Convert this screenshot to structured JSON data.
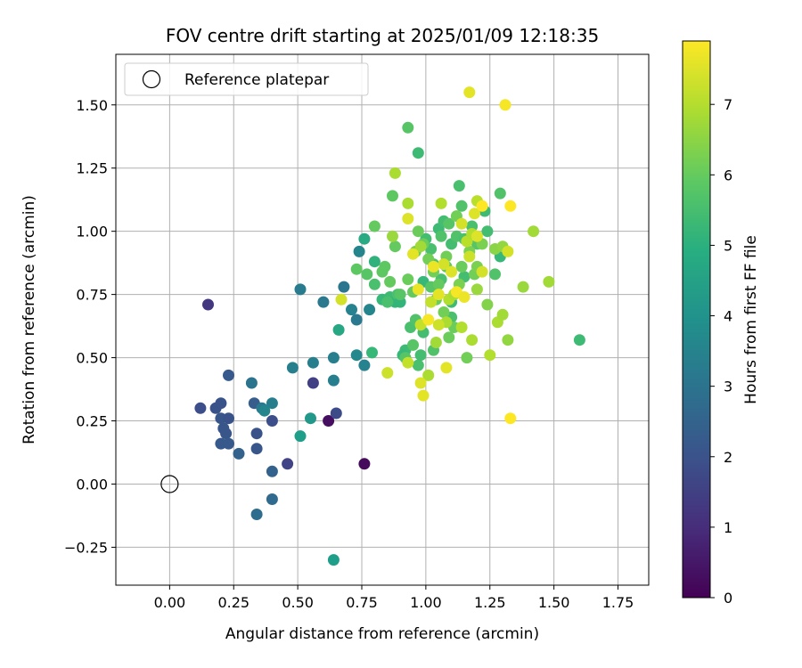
{
  "chart_data": {
    "type": "scatter",
    "title": "FOV centre drift starting at 2025/01/09 12:18:35",
    "xlabel": "Angular distance from reference (arcmin)",
    "ylabel": "Rotation from reference (arcmin)",
    "xlim": [
      -0.21,
      1.87
    ],
    "ylim": [
      -0.4,
      1.7
    ],
    "xticks": [
      0.0,
      0.25,
      0.5,
      0.75,
      1.0,
      1.25,
      1.5,
      1.75
    ],
    "xtick_labels": [
      "0.00",
      "0.25",
      "0.50",
      "0.75",
      "1.00",
      "1.25",
      "1.50",
      "1.75"
    ],
    "yticks": [
      -0.25,
      0.0,
      0.25,
      0.5,
      0.75,
      1.0,
      1.25,
      1.5
    ],
    "ytick_labels": [
      "−0.25",
      "0.00",
      "0.25",
      "0.50",
      "0.75",
      "1.00",
      "1.25",
      "1.50"
    ],
    "grid": true,
    "legend": {
      "placement": "top-left",
      "entries": [
        "Reference platepar"
      ]
    },
    "reference_point": {
      "x": 0.0,
      "y": 0.0,
      "marker": "open-circle"
    },
    "colorbar": {
      "label": "Hours from first FF file",
      "colormap": "viridis",
      "range": [
        0,
        7.9
      ],
      "ticks": [
        0,
        1,
        2,
        3,
        4,
        5,
        6,
        7
      ],
      "tick_labels": [
        "0",
        "1",
        "2",
        "3",
        "4",
        "5",
        "6",
        "7"
      ]
    },
    "points": [
      [
        0.76,
        0.08,
        0.2
      ],
      [
        0.62,
        0.25,
        0.3
      ],
      [
        0.15,
        0.71,
        1.3
      ],
      [
        0.56,
        0.4,
        1.5
      ],
      [
        0.46,
        0.08,
        1.6
      ],
      [
        0.65,
        0.28,
        1.8
      ],
      [
        0.12,
        0.3,
        1.9
      ],
      [
        0.18,
        0.3,
        2.0
      ],
      [
        0.2,
        0.32,
        2.0
      ],
      [
        0.2,
        0.26,
        2.1
      ],
      [
        0.23,
        0.26,
        2.0
      ],
      [
        0.21,
        0.22,
        2.1
      ],
      [
        0.22,
        0.2,
        2.1
      ],
      [
        0.2,
        0.16,
        2.2
      ],
      [
        0.23,
        0.16,
        2.2
      ],
      [
        0.23,
        0.43,
        2.2
      ],
      [
        0.34,
        0.2,
        2.0
      ],
      [
        0.34,
        0.14,
        2.1
      ],
      [
        0.33,
        0.32,
        2.3
      ],
      [
        0.4,
        0.25,
        1.9
      ],
      [
        0.27,
        0.12,
        2.5
      ],
      [
        0.4,
        0.05,
        2.5
      ],
      [
        0.4,
        -0.06,
        2.7
      ],
      [
        0.34,
        -0.12,
        2.8
      ],
      [
        0.32,
        0.4,
        3.0
      ],
      [
        0.36,
        0.3,
        3.2
      ],
      [
        0.4,
        0.32,
        3.4
      ],
      [
        0.37,
        0.29,
        3.6
      ],
      [
        0.48,
        0.46,
        3.4
      ],
      [
        0.51,
        0.77,
        3.3
      ],
      [
        0.56,
        0.48,
        3.4
      ],
      [
        0.6,
        0.72,
        3.2
      ],
      [
        0.64,
        0.5,
        3.4
      ],
      [
        0.64,
        0.41,
        3.4
      ],
      [
        0.68,
        0.78,
        3.1
      ],
      [
        0.71,
        0.69,
        3.5
      ],
      [
        0.73,
        0.65,
        3.2
      ],
      [
        0.74,
        0.92,
        3.6
      ],
      [
        0.73,
        0.51,
        3.7
      ],
      [
        0.76,
        0.47,
        3.5
      ],
      [
        0.78,
        0.69,
        3.6
      ],
      [
        0.55,
        0.26,
        4.2
      ],
      [
        0.51,
        0.19,
        4.4
      ],
      [
        0.64,
        -0.3,
        4.4
      ],
      [
        0.66,
        0.61,
        4.7
      ],
      [
        0.76,
        0.97,
        4.8
      ],
      [
        0.8,
        0.88,
        5.1
      ],
      [
        0.79,
        0.52,
        5.3
      ],
      [
        0.83,
        0.73,
        5.3
      ],
      [
        0.86,
        0.74,
        5.4
      ],
      [
        0.88,
        0.72,
        5.2
      ],
      [
        0.89,
        0.75,
        5.6
      ],
      [
        0.9,
        0.72,
        5.2
      ],
      [
        0.92,
        0.53,
        5.4
      ],
      [
        0.91,
        0.51,
        5.3
      ],
      [
        0.94,
        0.62,
        5.6
      ],
      [
        0.96,
        0.65,
        5.7
      ],
      [
        0.95,
        0.55,
        5.8
      ],
      [
        0.97,
        0.47,
        5.6
      ],
      [
        0.99,
        0.6,
        5.5
      ],
      [
        0.99,
        0.8,
        5.3
      ],
      [
        1.0,
        0.97,
        5.5
      ],
      [
        1.02,
        0.93,
        5.6
      ],
      [
        1.02,
        0.78,
        5.8
      ],
      [
        1.03,
        0.87,
        5.7
      ],
      [
        1.05,
        1.01,
        5.4
      ],
      [
        1.06,
        0.81,
        5.6
      ],
      [
        1.06,
        0.98,
        5.7
      ],
      [
        1.07,
        1.04,
        5.5
      ],
      [
        1.08,
        0.86,
        5.9
      ],
      [
        1.09,
        1.03,
        5.8
      ],
      [
        1.1,
        0.95,
        5.5
      ],
      [
        1.1,
        0.66,
        5.6
      ],
      [
        1.1,
        0.72,
        5.4
      ],
      [
        1.12,
        0.98,
        5.7
      ],
      [
        1.13,
        1.18,
        5.6
      ],
      [
        1.14,
        1.1,
        5.7
      ],
      [
        1.15,
        0.97,
        5.6
      ],
      [
        1.15,
        0.82,
        5.5
      ],
      [
        1.18,
        1.02,
        5.6
      ],
      [
        1.2,
        0.95,
        5.8
      ],
      [
        1.23,
        1.08,
        5.4
      ],
      [
        1.24,
        1.0,
        5.5
      ],
      [
        1.27,
        0.83,
        5.7
      ],
      [
        1.29,
        0.9,
        5.3
      ],
      [
        0.97,
        1.31,
        5.4
      ],
      [
        0.93,
        1.41,
        5.8
      ],
      [
        1.6,
        0.57,
        5.4
      ],
      [
        1.29,
        1.15,
        5.7
      ],
      [
        1.03,
        0.53,
        5.7
      ],
      [
        0.98,
        0.51,
        5.5
      ],
      [
        0.8,
        0.79,
        5.6
      ],
      [
        0.84,
        0.86,
        5.9
      ],
      [
        0.85,
        0.72,
        5.6
      ],
      [
        0.87,
        1.14,
        5.9
      ],
      [
        0.9,
        0.75,
        5.8
      ],
      [
        0.92,
        0.5,
        5.8
      ],
      [
        0.8,
        1.02,
        6.0
      ],
      [
        0.73,
        0.85,
        5.9
      ],
      [
        0.77,
        0.83,
        5.8
      ],
      [
        0.83,
        0.84,
        5.9
      ],
      [
        0.86,
        0.8,
        6.0
      ],
      [
        0.88,
        0.94,
        6.0
      ],
      [
        0.93,
        0.81,
        6.1
      ],
      [
        0.95,
        0.76,
        6.0
      ],
      [
        0.96,
        0.92,
        6.2
      ],
      [
        0.97,
        1.0,
        6.1
      ],
      [
        0.99,
        0.95,
        6.1
      ],
      [
        1.01,
        0.89,
        6.2
      ],
      [
        1.03,
        0.84,
        6.2
      ],
      [
        1.04,
        0.73,
        6.1
      ],
      [
        1.05,
        0.79,
        6.0
      ],
      [
        1.07,
        0.68,
        6.2
      ],
      [
        1.08,
        0.9,
        6.2
      ],
      [
        1.09,
        0.58,
        6.1
      ],
      [
        1.11,
        0.62,
        6.1
      ],
      [
        1.12,
        1.06,
        6.2
      ],
      [
        1.13,
        0.79,
        6.3
      ],
      [
        1.14,
        0.86,
        6.1
      ],
      [
        1.16,
        0.5,
        6.2
      ],
      [
        1.17,
        0.92,
        6.3
      ],
      [
        1.19,
        0.83,
        6.2
      ],
      [
        1.2,
        0.86,
        6.3
      ],
      [
        1.22,
        0.95,
        6.3
      ],
      [
        1.24,
        0.71,
        6.4
      ],
      [
        1.27,
        0.93,
        6.5
      ],
      [
        1.3,
        0.94,
        6.6
      ],
      [
        1.32,
        0.57,
        6.6
      ],
      [
        1.38,
        0.78,
        6.7
      ],
      [
        1.42,
        1.0,
        6.8
      ],
      [
        1.48,
        0.8,
        6.8
      ],
      [
        1.25,
        0.51,
        7.0
      ],
      [
        1.18,
        0.57,
        6.9
      ],
      [
        1.2,
        0.77,
        6.7
      ],
      [
        1.28,
        0.64,
        6.9
      ],
      [
        1.3,
        0.67,
        6.8
      ],
      [
        0.87,
        0.98,
        6.7
      ],
      [
        0.88,
        1.23,
        6.9
      ],
      [
        0.93,
        1.11,
        6.9
      ],
      [
        0.98,
        0.94,
        6.8
      ],
      [
        1.01,
        0.43,
        6.9
      ],
      [
        1.04,
        0.56,
        6.8
      ],
      [
        1.06,
        1.11,
        7.0
      ],
      [
        1.08,
        0.64,
        6.9
      ],
      [
        1.09,
        0.73,
        7.0
      ],
      [
        1.11,
        0.75,
        6.9
      ],
      [
        1.14,
        0.62,
        7.0
      ],
      [
        1.16,
        0.96,
        7.1
      ],
      [
        1.18,
        0.99,
        7.0
      ],
      [
        1.2,
        1.12,
        7.1
      ],
      [
        0.93,
        0.48,
        7.2
      ],
      [
        0.98,
        0.63,
        7.2
      ],
      [
        1.02,
        0.72,
        7.2
      ],
      [
        1.05,
        0.63,
        7.3
      ],
      [
        1.07,
        0.87,
        7.4
      ],
      [
        1.14,
        1.03,
        7.4
      ],
      [
        1.17,
        0.9,
        7.3
      ],
      [
        1.19,
        1.07,
        7.5
      ],
      [
        1.2,
        0.98,
        7.5
      ],
      [
        1.32,
        0.92,
        7.4
      ],
      [
        0.85,
        0.44,
        7.3
      ],
      [
        0.67,
        0.73,
        7.4
      ],
      [
        0.93,
        1.05,
        7.5
      ],
      [
        0.95,
        0.91,
        7.6
      ],
      [
        0.97,
        0.77,
        7.7
      ],
      [
        0.99,
        0.35,
        7.6
      ],
      [
        1.01,
        0.65,
        7.8
      ],
      [
        1.03,
        0.86,
        7.7
      ],
      [
        1.05,
        0.75,
        7.6
      ],
      [
        1.08,
        0.46,
        7.6
      ],
      [
        1.12,
        0.76,
        7.8
      ],
      [
        1.15,
        0.74,
        7.7
      ],
      [
        1.17,
        1.55,
        7.6
      ],
      [
        1.22,
        1.1,
        7.9
      ],
      [
        1.31,
        1.5,
        7.8
      ],
      [
        1.33,
        1.1,
        7.9
      ],
      [
        1.33,
        0.26,
        7.9
      ],
      [
        0.98,
        0.4,
        7.5
      ],
      [
        1.1,
        0.84,
        7.5
      ],
      [
        1.22,
        0.84,
        7.4
      ]
    ]
  }
}
